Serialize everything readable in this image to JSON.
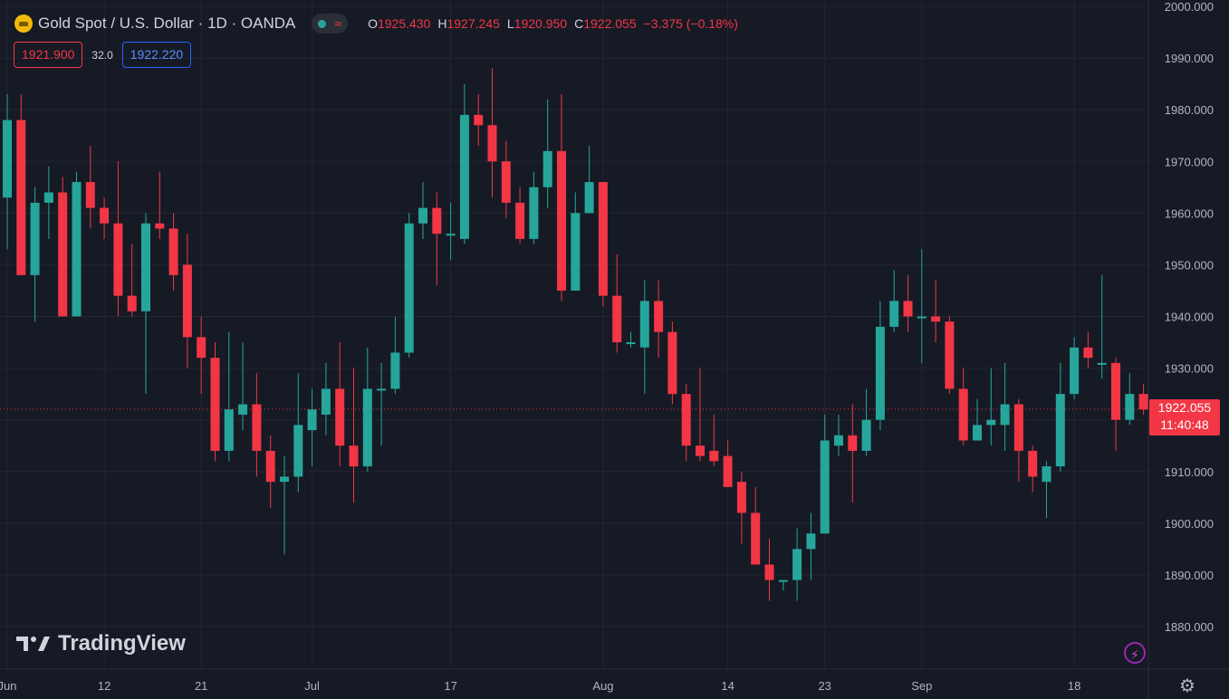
{
  "header": {
    "symbol_title": "Gold Spot / U.S. Dollar · 1D · OANDA",
    "status_wave": "≈",
    "ohlc": {
      "o_label": "O",
      "o_value": "1925.430",
      "h_label": "H",
      "h_value": "1927.245",
      "l_label": "L",
      "l_value": "1920.950",
      "c_label": "C",
      "c_value": "1922.055",
      "change": "−3.375 (−0.18%)"
    },
    "sell_price": "1921.900",
    "spread": "32.0",
    "buy_price": "1922.220"
  },
  "branding": {
    "logo_text": "TradingView"
  },
  "last_price": {
    "price": "1922.055",
    "countdown": "11:40:48"
  },
  "colors": {
    "up": "#26a69a",
    "down": "#f23645",
    "background": "#161a25",
    "grid": "#232632",
    "axis_text": "#b2b5be"
  },
  "chart_data": {
    "type": "candlestick",
    "symbol": "XAUUSD",
    "timeframe": "1D",
    "ylim": [
      1875,
      2000
    ],
    "y_ticks": [
      1880,
      1890,
      1900,
      1910,
      1920,
      1930,
      1940,
      1950,
      1960,
      1970,
      1980,
      1990,
      2000
    ],
    "y_tick_labels": [
      "1880.000",
      "1890.000",
      "1900.000",
      "1910.000",
      "1920.000",
      "1930.000",
      "1940.000",
      "1950.000",
      "1960.000",
      "1970.000",
      "1980.000",
      "1990.000",
      "2000.000"
    ],
    "x_ticks": [
      {
        "label": "Jun",
        "index": 0
      },
      {
        "label": "12",
        "index": 7
      },
      {
        "label": "21",
        "index": 14
      },
      {
        "label": "Jul",
        "index": 22
      },
      {
        "label": "17",
        "index": 32
      },
      {
        "label": "Aug",
        "index": 43
      },
      {
        "label": "14",
        "index": 52
      },
      {
        "label": "23",
        "index": 59
      },
      {
        "label": "Sep",
        "index": 66
      },
      {
        "label": "18",
        "index": 77
      }
    ],
    "last_price": 1922.055,
    "candles": [
      {
        "o": 1963,
        "h": 1983,
        "l": 1953,
        "c": 1978
      },
      {
        "o": 1978,
        "h": 1983,
        "l": 1948,
        "c": 1948
      },
      {
        "o": 1948,
        "h": 1965,
        "l": 1939,
        "c": 1962
      },
      {
        "o": 1962,
        "h": 1969,
        "l": 1955,
        "c": 1964
      },
      {
        "o": 1964,
        "h": 1967,
        "l": 1940,
        "c": 1940
      },
      {
        "o": 1940,
        "h": 1968,
        "l": 1940,
        "c": 1966
      },
      {
        "o": 1966,
        "h": 1973,
        "l": 1957,
        "c": 1961
      },
      {
        "o": 1961,
        "h": 1963,
        "l": 1955,
        "c": 1958
      },
      {
        "o": 1958,
        "h": 1970,
        "l": 1940,
        "c": 1944
      },
      {
        "o": 1944,
        "h": 1954,
        "l": 1940,
        "c": 1941
      },
      {
        "o": 1941,
        "h": 1960,
        "l": 1925,
        "c": 1958
      },
      {
        "o": 1958,
        "h": 1968,
        "l": 1955,
        "c": 1957
      },
      {
        "o": 1957,
        "h": 1960,
        "l": 1945,
        "c": 1948
      },
      {
        "o": 1950,
        "h": 1956,
        "l": 1930,
        "c": 1936
      },
      {
        "o": 1936,
        "h": 1940,
        "l": 1925,
        "c": 1932
      },
      {
        "o": 1932,
        "h": 1935,
        "l": 1912,
        "c": 1914
      },
      {
        "o": 1914,
        "h": 1937,
        "l": 1912,
        "c": 1922
      },
      {
        "o": 1921,
        "h": 1935,
        "l": 1918,
        "c": 1923
      },
      {
        "o": 1923,
        "h": 1929,
        "l": 1909,
        "c": 1914
      },
      {
        "o": 1914,
        "h": 1917,
        "l": 1903,
        "c": 1908
      },
      {
        "o": 1908,
        "h": 1913,
        "l": 1894,
        "c": 1909
      },
      {
        "o": 1909,
        "h": 1929,
        "l": 1906,
        "c": 1919
      },
      {
        "o": 1918,
        "h": 1926,
        "l": 1911,
        "c": 1922
      },
      {
        "o": 1921,
        "h": 1931,
        "l": 1917,
        "c": 1926
      },
      {
        "o": 1926,
        "h": 1935,
        "l": 1911,
        "c": 1915
      },
      {
        "o": 1915,
        "h": 1930,
        "l": 1904,
        "c": 1911
      },
      {
        "o": 1911,
        "h": 1934,
        "l": 1910,
        "c": 1926
      },
      {
        "o": 1926,
        "h": 1931,
        "l": 1915,
        "c": 1926
      },
      {
        "o": 1926,
        "h": 1940,
        "l": 1925,
        "c": 1933
      },
      {
        "o": 1933,
        "h": 1960,
        "l": 1932,
        "c": 1958
      },
      {
        "o": 1958,
        "h": 1966,
        "l": 1955,
        "c": 1961
      },
      {
        "o": 1961,
        "h": 1964,
        "l": 1946,
        "c": 1956
      },
      {
        "o": 1956,
        "h": 1962,
        "l": 1951,
        "c": 1956
      },
      {
        "o": 1955,
        "h": 1985,
        "l": 1954,
        "c": 1979
      },
      {
        "o": 1979,
        "h": 1983,
        "l": 1973,
        "c": 1977
      },
      {
        "o": 1977,
        "h": 1988,
        "l": 1963,
        "c": 1970
      },
      {
        "o": 1970,
        "h": 1974,
        "l": 1959,
        "c": 1962
      },
      {
        "o": 1962,
        "h": 1965,
        "l": 1954,
        "c": 1955
      },
      {
        "o": 1955,
        "h": 1968,
        "l": 1954,
        "c": 1965
      },
      {
        "o": 1965,
        "h": 1982,
        "l": 1961,
        "c": 1972
      },
      {
        "o": 1972,
        "h": 1983,
        "l": 1943,
        "c": 1945
      },
      {
        "o": 1945,
        "h": 1964,
        "l": 1945,
        "c": 1960
      },
      {
        "o": 1960,
        "h": 1973,
        "l": 1960,
        "c": 1966
      },
      {
        "o": 1966,
        "h": 1966,
        "l": 1942,
        "c": 1944
      },
      {
        "o": 1944,
        "h": 1952,
        "l": 1933,
        "c": 1935
      },
      {
        "o": 1935,
        "h": 1937,
        "l": 1934,
        "c": 1935
      },
      {
        "o": 1934,
        "h": 1947,
        "l": 1925,
        "c": 1943
      },
      {
        "o": 1943,
        "h": 1947,
        "l": 1932,
        "c": 1937
      },
      {
        "o": 1937,
        "h": 1939,
        "l": 1923,
        "c": 1925
      },
      {
        "o": 1925,
        "h": 1927,
        "l": 1912,
        "c": 1915
      },
      {
        "o": 1915,
        "h": 1930,
        "l": 1912,
        "c": 1913
      },
      {
        "o": 1914,
        "h": 1921,
        "l": 1911,
        "c": 1912
      },
      {
        "o": 1913,
        "h": 1916,
        "l": 1907,
        "c": 1907
      },
      {
        "o": 1908,
        "h": 1910,
        "l": 1896,
        "c": 1902
      },
      {
        "o": 1902,
        "h": 1907,
        "l": 1892,
        "c": 1892
      },
      {
        "o": 1892,
        "h": 1897,
        "l": 1885,
        "c": 1889
      },
      {
        "o": 1889,
        "h": 1889,
        "l": 1887,
        "c": 1889
      },
      {
        "o": 1889,
        "h": 1899,
        "l": 1885,
        "c": 1895
      },
      {
        "o": 1895,
        "h": 1902,
        "l": 1889,
        "c": 1898
      },
      {
        "o": 1898,
        "h": 1921,
        "l": 1898,
        "c": 1916
      },
      {
        "o": 1915,
        "h": 1921,
        "l": 1913,
        "c": 1917
      },
      {
        "o": 1917,
        "h": 1923,
        "l": 1904,
        "c": 1914
      },
      {
        "o": 1914,
        "h": 1926,
        "l": 1913,
        "c": 1920
      },
      {
        "o": 1920,
        "h": 1943,
        "l": 1918,
        "c": 1938
      },
      {
        "o": 1938,
        "h": 1949,
        "l": 1937,
        "c": 1943
      },
      {
        "o": 1943,
        "h": 1948,
        "l": 1937,
        "c": 1940
      },
      {
        "o": 1940,
        "h": 1953,
        "l": 1931,
        "c": 1940
      },
      {
        "o": 1940,
        "h": 1947,
        "l": 1935,
        "c": 1939
      },
      {
        "o": 1939,
        "h": 1940,
        "l": 1925,
        "c": 1926
      },
      {
        "o": 1926,
        "h": 1930,
        "l": 1915,
        "c": 1916
      },
      {
        "o": 1916,
        "h": 1924,
        "l": 1916,
        "c": 1919
      },
      {
        "o": 1919,
        "h": 1930,
        "l": 1915,
        "c": 1920
      },
      {
        "o": 1919,
        "h": 1931,
        "l": 1914,
        "c": 1923
      },
      {
        "o": 1923,
        "h": 1924,
        "l": 1908,
        "c": 1914
      },
      {
        "o": 1914,
        "h": 1915,
        "l": 1906,
        "c": 1909
      },
      {
        "o": 1908,
        "h": 1912,
        "l": 1901,
        "c": 1911
      },
      {
        "o": 1911,
        "h": 1931,
        "l": 1910,
        "c": 1925
      },
      {
        "o": 1925,
        "h": 1936,
        "l": 1924,
        "c": 1934
      },
      {
        "o": 1934,
        "h": 1937,
        "l": 1930,
        "c": 1932
      },
      {
        "o": 1931,
        "h": 1948,
        "l": 1928,
        "c": 1931
      },
      {
        "o": 1931,
        "h": 1932,
        "l": 1914,
        "c": 1920
      },
      {
        "o": 1920,
        "h": 1929,
        "l": 1919,
        "c": 1925
      },
      {
        "o": 1925,
        "h": 1927,
        "l": 1921,
        "c": 1922
      }
    ]
  }
}
